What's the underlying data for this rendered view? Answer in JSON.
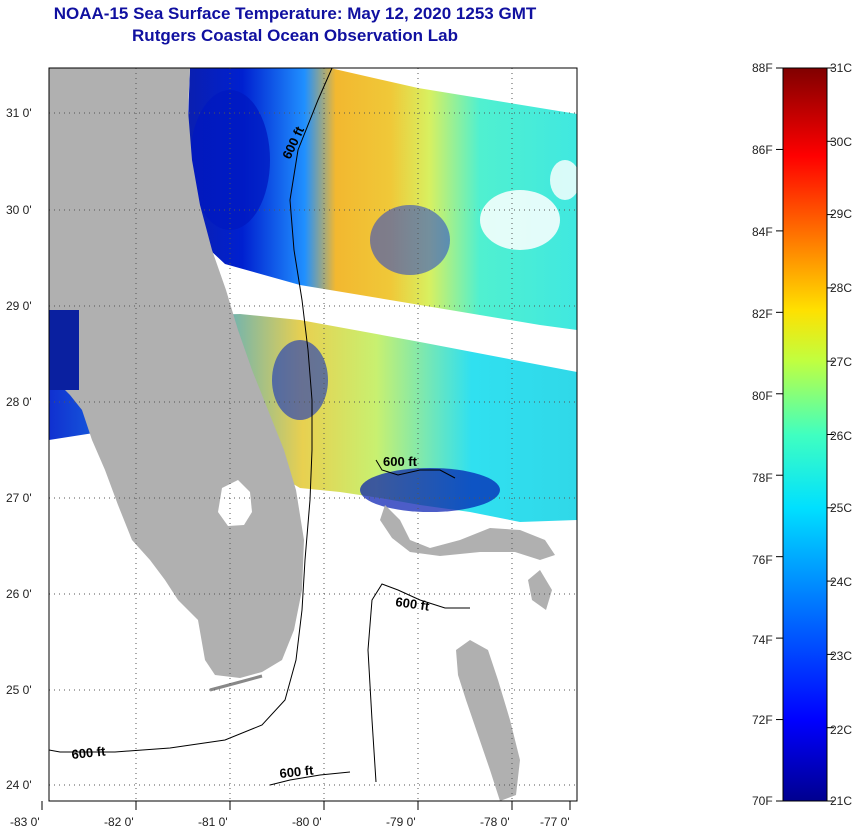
{
  "title": {
    "line1": "NOAA-15 Sea Surface Temperature:  May 12, 2020 1253 GMT",
    "line2": "Rutgers Coastal Ocean Observation Lab"
  },
  "map": {
    "lon_ticks": [
      "-83 0'",
      "-82 0'",
      "-81 0'",
      "-80 0'",
      "-79 0'",
      "-78 0'",
      "-77 0'"
    ],
    "lat_ticks": [
      "31 0'",
      "30 0'",
      "29 0'",
      "28 0'",
      "27 0'",
      "26 0'",
      "25 0'",
      "24 0'"
    ],
    "contour_labels": [
      "600 ft",
      "600 ft",
      "600 ft",
      "600 ft",
      "600 ft"
    ],
    "colors": {
      "land": "#b0b0b0",
      "nodata": "#ffffff",
      "grid": "#555555"
    }
  },
  "colorbar": {
    "f_labels": [
      "88F",
      "86F",
      "84F",
      "82F",
      "80F",
      "78F",
      "76F",
      "74F",
      "72F",
      "70F"
    ],
    "c_labels": [
      "31C",
      "30C",
      "29C",
      "28C",
      "27C",
      "26C",
      "25C",
      "24C",
      "23C",
      "22C",
      "21C"
    ],
    "colors": [
      "#00008f",
      "#0000ff",
      "#0080ff",
      "#00e0ff",
      "#40ffc0",
      "#c0ff40",
      "#ffe000",
      "#ff8000",
      "#ff0000",
      "#800000"
    ]
  }
}
